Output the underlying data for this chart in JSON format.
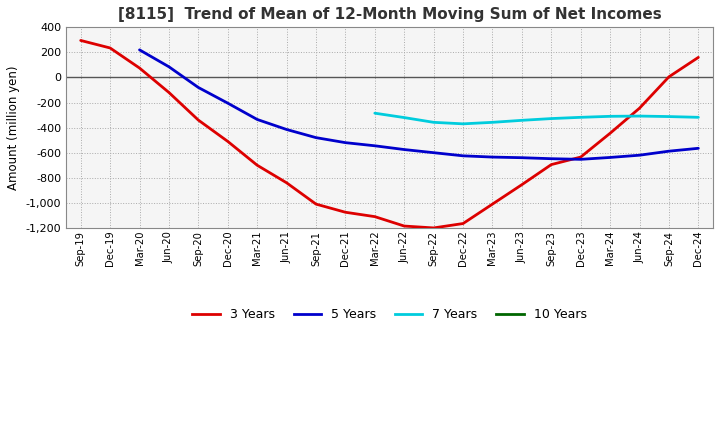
{
  "title": "[8115]  Trend of Mean of 12-Month Moving Sum of Net Incomes",
  "ylabel": "Amount (million yen)",
  "ylim": [
    -1200,
    400
  ],
  "yticks": [
    -1200,
    -1000,
    -800,
    -600,
    -400,
    -200,
    0,
    200,
    400
  ],
  "background_color": "#ffffff",
  "plot_bg_color": "#f5f5f5",
  "grid_color": "#aaaaaa",
  "line_zero_color": "#555555",
  "x_labels": [
    "Sep-19",
    "Dec-19",
    "Mar-20",
    "Jun-20",
    "Sep-20",
    "Dec-20",
    "Mar-21",
    "Jun-21",
    "Sep-21",
    "Dec-21",
    "Mar-22",
    "Jun-22",
    "Sep-22",
    "Dec-22",
    "Mar-23",
    "Jun-23",
    "Sep-23",
    "Dec-23",
    "Mar-24",
    "Jun-24",
    "Sep-24",
    "Dec-24"
  ],
  "series": {
    "3 Years": {
      "color": "#dd0000",
      "data_x": [
        0,
        1,
        2,
        3,
        4,
        5,
        6,
        7,
        8,
        9,
        10,
        11,
        12,
        13,
        14,
        15,
        16,
        17,
        18,
        19,
        20,
        21
      ],
      "data_y": [
        295,
        235,
        75,
        -120,
        -340,
        -510,
        -700,
        -840,
        -1010,
        -1075,
        -1110,
        -1185,
        -1200,
        -1165,
        -1010,
        -855,
        -695,
        -635,
        -445,
        -245,
        5,
        160
      ]
    },
    "5 Years": {
      "color": "#0000cc",
      "data_x": [
        2,
        3,
        4,
        5,
        6,
        7,
        8,
        9,
        10,
        11,
        12,
        13,
        14,
        15,
        16,
        17,
        18,
        19,
        20,
        21
      ],
      "data_y": [
        220,
        85,
        -80,
        -205,
        -335,
        -415,
        -480,
        -520,
        -545,
        -575,
        -600,
        -625,
        -635,
        -640,
        -648,
        -653,
        -638,
        -620,
        -588,
        -565
      ]
    },
    "7 Years": {
      "color": "#00ccdd",
      "data_x": [
        10,
        11,
        12,
        13,
        14,
        15,
        16,
        17,
        18,
        19,
        20,
        21
      ],
      "data_y": [
        -285,
        -320,
        -358,
        -370,
        -358,
        -342,
        -328,
        -318,
        -310,
        -308,
        -312,
        -318
      ]
    },
    "10 Years": {
      "color": "#006600",
      "data_x": [],
      "data_y": []
    }
  }
}
